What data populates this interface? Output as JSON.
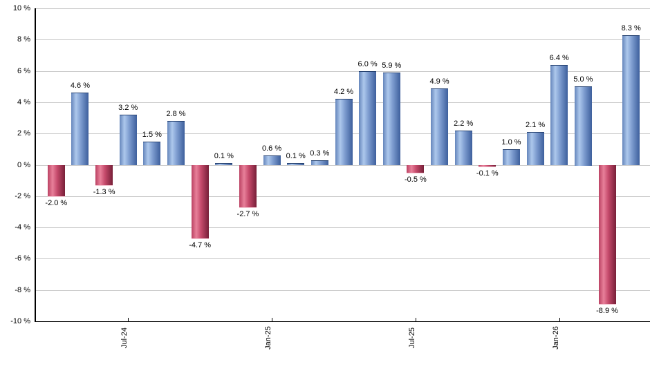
{
  "chart_data": {
    "type": "bar",
    "title": "",
    "xlabel": "",
    "ylabel": "",
    "unit": "%",
    "ylim": [
      -10,
      10
    ],
    "ytick_step": 2,
    "grid": true,
    "legend": false,
    "values": [
      -2.0,
      4.6,
      -1.3,
      3.2,
      1.5,
      2.8,
      -4.7,
      0.1,
      -2.7,
      0.6,
      0.1,
      0.3,
      4.2,
      6.0,
      5.9,
      -0.5,
      4.9,
      2.2,
      -0.1,
      1.0,
      2.1,
      6.4,
      5.0,
      -8.9,
      8.3
    ],
    "value_labels": [
      "-2.0 %",
      "4.6 %",
      "-1.3 %",
      "3.2 %",
      "1.5 %",
      "2.8 %",
      "-4.7 %",
      "0.1 %",
      "-2.7 %",
      "0.6 %",
      "0.1 %",
      "0.3 %",
      "4.2 %",
      "6.0 %",
      "5.9 %",
      "-0.5 %",
      "4.9 %",
      "2.2 %",
      "-0.1 %",
      "1.0 %",
      "2.1 %",
      "6.4 %",
      "5.0 %",
      "-8.9 %",
      "8.3 %"
    ],
    "ytick_labels": [
      "10 %",
      "8 %",
      "6 %",
      "4 %",
      "2 %",
      "0 %",
      "-2 %",
      "-4 %",
      "-6 %",
      "-8 %",
      "-10 %"
    ],
    "xticks": [
      {
        "bar_index": 3,
        "label": "Jul-24"
      },
      {
        "bar_index": 9,
        "label": "Jan-25"
      },
      {
        "bar_index": 15,
        "label": "Jul-25"
      },
      {
        "bar_index": 21,
        "label": "Jan-26"
      }
    ],
    "colors": {
      "positive_gradient": [
        "#6585bb",
        "#adc8ec",
        "#7e9dd0",
        "#3d5f9c"
      ],
      "negative_gradient": [
        "#bb4263",
        "#e8809a",
        "#c54a6b",
        "#771f38"
      ],
      "gridline": "#cccccc",
      "axis": "#000000",
      "label_text": "#000000",
      "background": "#ffffff"
    }
  }
}
